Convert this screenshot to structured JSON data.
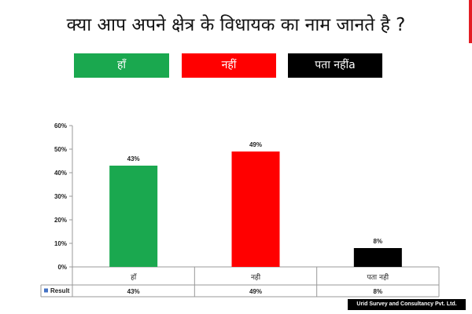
{
  "title": "क्या आप अपने क्षेत्र के विधायक का नाम जानते है ?",
  "legend_buttons": [
    {
      "label": "हाँ",
      "color": "#1aa84f",
      "text_color": "#ffffff"
    },
    {
      "label": "नहीं",
      "color": "#ff0000",
      "text_color": "#ffffff"
    },
    {
      "label": "पता नहींa",
      "color": "#000000",
      "text_color": "#ffffff"
    }
  ],
  "chart_data": {
    "type": "bar",
    "categories": [
      "हाँ",
      "नही",
      "पता नही"
    ],
    "series": [
      {
        "name": "Result",
        "values": [
          43,
          49,
          8
        ]
      }
    ],
    "data_labels": [
      "43%",
      "49%",
      "8%"
    ],
    "colors": [
      "#1aa84f",
      "#ff0000",
      "#000000"
    ],
    "ylim": [
      0,
      60
    ],
    "yticks": [
      "0%",
      "10%",
      "20%",
      "30%",
      "40%",
      "50%",
      "60%"
    ],
    "table_row_label": "Result",
    "table_values": [
      "43%",
      "49%",
      "8%"
    ],
    "legend_marker_color": "#4472c4",
    "grid": false
  },
  "footer": "Urid Survey and Consultancy Pvt. Ltd."
}
